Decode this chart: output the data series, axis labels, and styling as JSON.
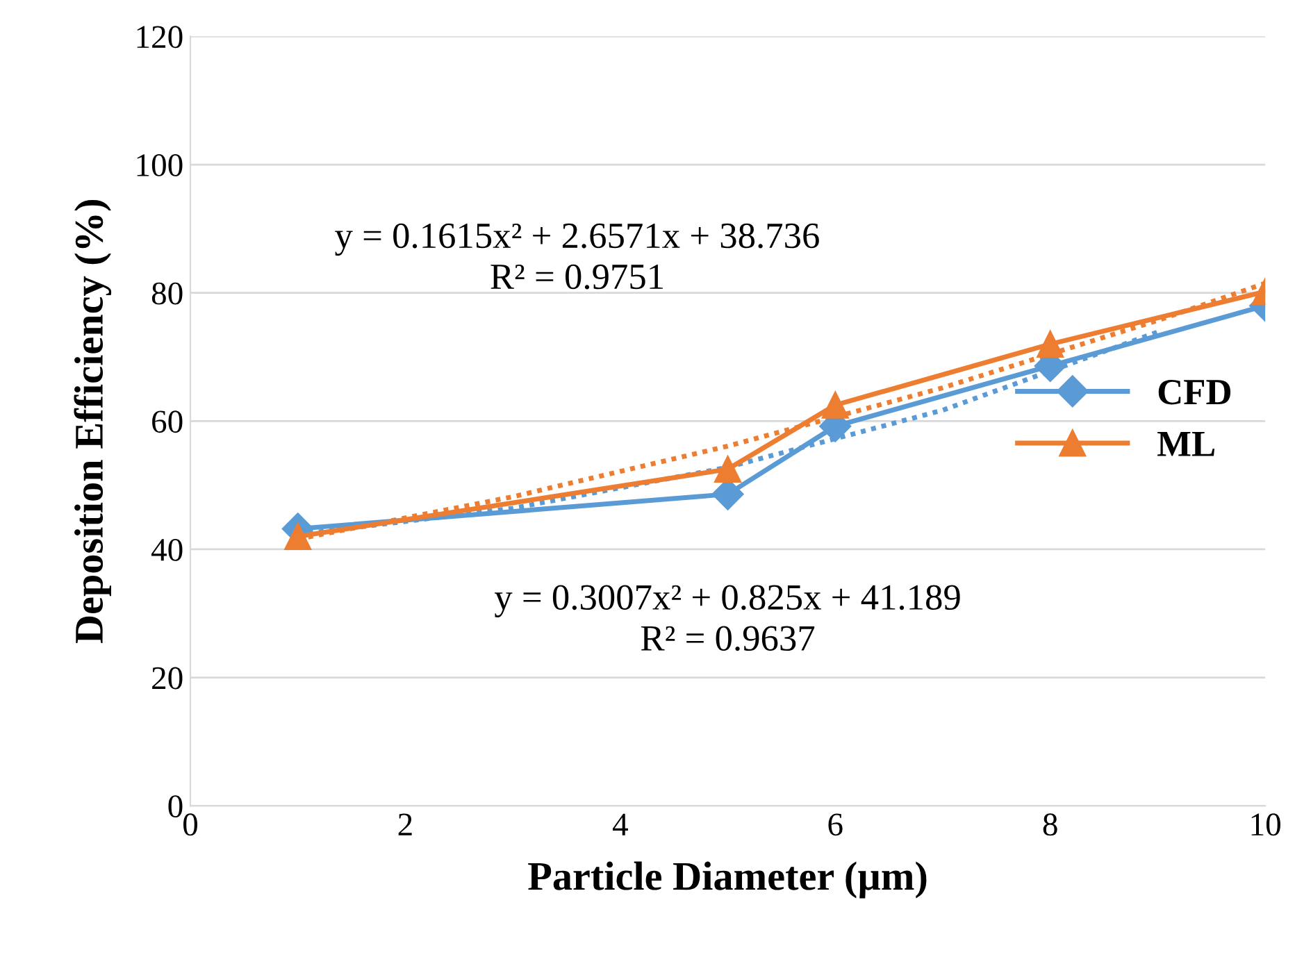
{
  "chart_data": {
    "type": "line",
    "xlabel": "Particle Diameter (µm)",
    "ylabel": "Deposition Efficiency (%)",
    "xlim": [
      0,
      10
    ],
    "xticks": [
      0,
      2,
      4,
      6,
      8,
      10
    ],
    "ylim": [
      0,
      120
    ],
    "yticks": [
      0,
      20,
      40,
      60,
      80,
      100,
      120
    ],
    "grid": "y",
    "legend": "right",
    "line_style": "solid",
    "series": [
      {
        "name": "CFD",
        "color": "#5b9bd5",
        "marker": "diamond",
        "x": [
          1,
          5,
          6,
          8,
          10
        ],
        "values": [
          43.2,
          48.6,
          59.2,
          68.6,
          78
        ]
      },
      {
        "name": "ML",
        "color": "#ed7d31",
        "marker": "triangle",
        "x": [
          1,
          5,
          6,
          8,
          10
        ],
        "values": [
          42,
          52.5,
          62.5,
          72,
          80.2
        ]
      },
      {
        "color": "#5b9bd5",
        "marker": "none",
        "line_style": "dotted",
        "x": [
          1,
          3,
          5,
          7,
          9
        ],
        "values": [
          42.3,
          46.4,
          52.8,
          61.7,
          73.9
        ]
      },
      {
        "color": "#ed7d31",
        "marker": "none",
        "line_style": "dotted",
        "x": [
          1,
          3,
          5,
          7,
          9,
          10
        ],
        "values": [
          41.6,
          48.2,
          56.1,
          65.2,
          75.7,
          81.5
        ]
      }
    ],
    "annotations": [
      "y = 0.1615x² + 2.6571x + 38.736\nR² = 0.9751",
      "y = 0.3007x² + 0.825x + 41.189\nR² = 0.9637"
    ]
  }
}
